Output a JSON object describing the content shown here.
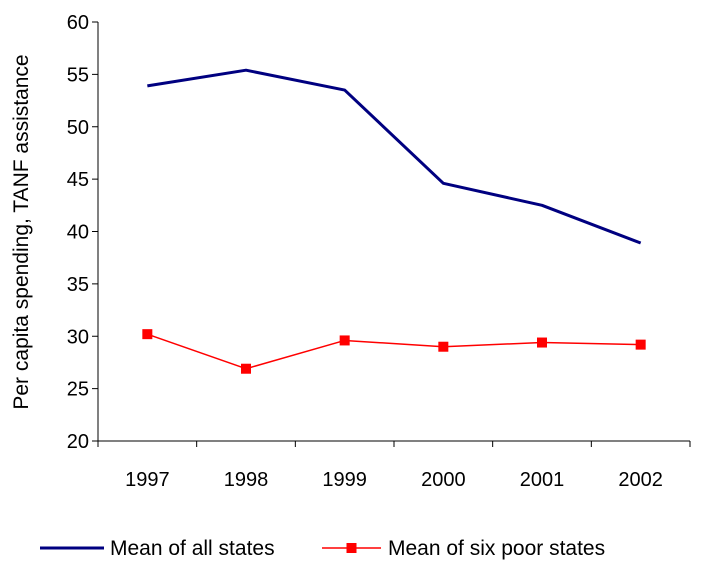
{
  "chart_data": {
    "type": "line",
    "title": "",
    "xlabel": "",
    "ylabel": "Per capita spending, TANF assistance",
    "ylim": [
      20,
      60
    ],
    "yticks": [
      20,
      25,
      30,
      35,
      40,
      45,
      50,
      55,
      60
    ],
    "categories": [
      "1997",
      "1998",
      "1999",
      "2000",
      "2001",
      "2002"
    ],
    "grid": false,
    "legend_position": "bottom",
    "series": [
      {
        "name": "Mean of all states",
        "values": [
          53.9,
          55.4,
          53.5,
          44.6,
          42.5,
          38.9
        ],
        "color": "#000080",
        "marker": "none"
      },
      {
        "name": "Mean of six poor states",
        "values": [
          30.2,
          26.9,
          29.6,
          29.0,
          29.4,
          29.2
        ],
        "color": "#ff0000",
        "marker": "square"
      }
    ]
  }
}
